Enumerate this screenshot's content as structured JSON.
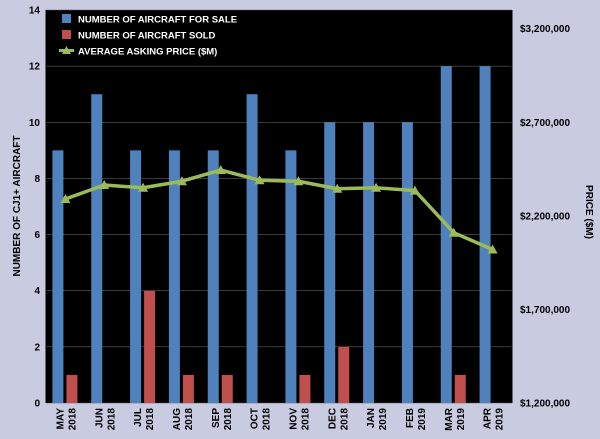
{
  "chart_data": {
    "type": "bar",
    "categories": [
      [
        "MAY",
        "2018"
      ],
      [
        "JUN",
        "2018"
      ],
      [
        "JUL",
        "2018"
      ],
      [
        "AUG",
        "2018"
      ],
      [
        "SEP",
        "2018"
      ],
      [
        "OCT",
        "2018"
      ],
      [
        "NOV",
        "2018"
      ],
      [
        "DEC",
        "2018"
      ],
      [
        "JAN",
        "2019"
      ],
      [
        "FEB",
        "2019"
      ],
      [
        "MAR",
        "2019"
      ],
      [
        "APR",
        "2019"
      ]
    ],
    "series": [
      {
        "name": "NUMBER OF AIRCRAFT FOR SALE",
        "type": "bar",
        "axis": "left",
        "color": "#4f81bd",
        "values": [
          9,
          11,
          9,
          9,
          9,
          11,
          9,
          10,
          10,
          10,
          12,
          12
        ]
      },
      {
        "name": "NUMBER OF AIRCRAFT SOLD",
        "type": "bar",
        "axis": "left",
        "color": "#c0504d",
        "values": [
          1,
          0,
          4,
          1,
          1,
          0,
          1,
          2,
          0,
          0,
          1,
          0
        ]
      },
      {
        "name": "AVERAGE ASKING PRICE ($M)",
        "type": "line",
        "axis": "right",
        "color": "#9bbb59",
        "values": [
          2290000,
          2365000,
          2350000,
          2385000,
          2445000,
          2390000,
          2385000,
          2345000,
          2350000,
          2335000,
          2110000,
          2020000
        ]
      }
    ],
    "ylabel_left": "NUMBER OF CJ1+ AIRCRAFT",
    "ylabel_right": "PRICE ($M)",
    "ylim_left": [
      0,
      14
    ],
    "yticks_left": [
      "0",
      "2",
      "4",
      "6",
      "8",
      "10",
      "12",
      "14"
    ],
    "ylim_right": [
      1200000,
      3300000
    ],
    "yticks_right": [
      {
        "value": 1200000,
        "label": "$1,200,000"
      },
      {
        "value": 1700000,
        "label": "$1,700,000"
      },
      {
        "value": 2200000,
        "label": "$2,200,000"
      },
      {
        "value": 2700000,
        "label": "$2,700,000"
      },
      {
        "value": 3200000,
        "label": "$3,200,000"
      }
    ],
    "legend_position": "top-left",
    "grid": "horizontal",
    "plot_background": "#000000"
  }
}
